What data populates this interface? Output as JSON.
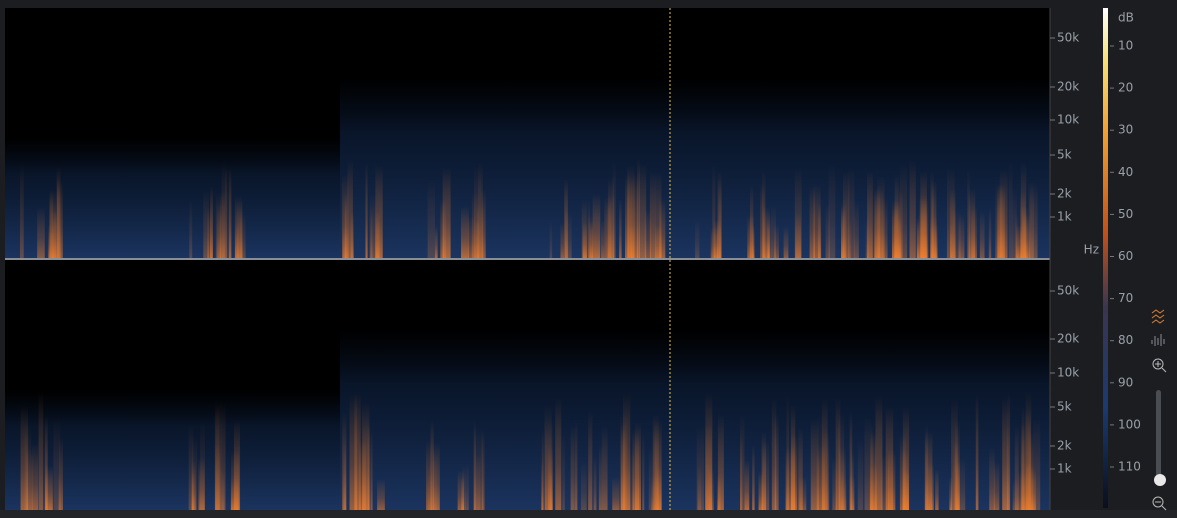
{
  "channels": [
    {
      "freq_labels": [
        "50k",
        "20k",
        "10k",
        "5k",
        "2k",
        "1k"
      ],
      "unit": "Hz"
    },
    {
      "freq_labels": [
        "50k",
        "20k",
        "10k",
        "5k",
        "2k",
        "1k"
      ]
    }
  ],
  "db_scale": {
    "unit": "dB",
    "labels": [
      "10",
      "20",
      "30",
      "40",
      "50",
      "60",
      "70",
      "80",
      "90",
      "100",
      "110"
    ]
  }
}
